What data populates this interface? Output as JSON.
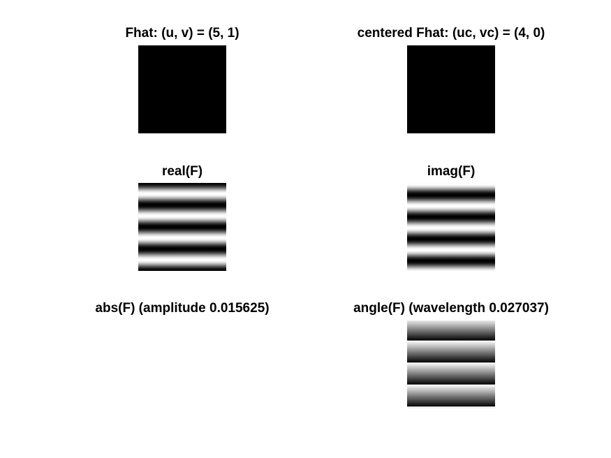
{
  "figure": {
    "panels": [
      {
        "id": "fhat",
        "title": "Fhat: (u, v) = (5, 1)",
        "pattern": "solid-black"
      },
      {
        "id": "centered-fhat",
        "title": "centered Fhat: (uc, vc) = (4, 0)",
        "pattern": "solid-black"
      },
      {
        "id": "real",
        "title": "real(F)",
        "pattern": "cosine-stripes",
        "cycles": 4
      },
      {
        "id": "imag",
        "title": "imag(F)",
        "pattern": "sine-stripes",
        "cycles": 4
      },
      {
        "id": "abs",
        "title": "abs(F) (amplitude 0.015625)",
        "pattern": "uniform-white"
      },
      {
        "id": "angle",
        "title": "angle(F) (wavelength 0.027037)",
        "pattern": "sawtooth-stripes",
        "cycles": 4
      }
    ]
  }
}
